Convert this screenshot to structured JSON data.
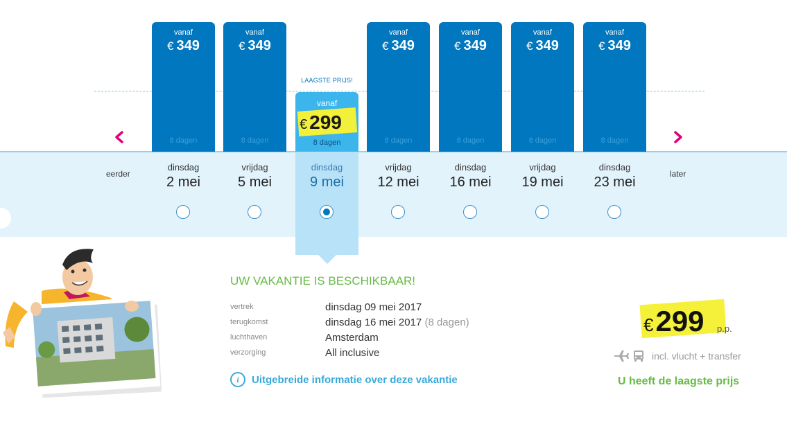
{
  "nav": {
    "earlier_label": "eerder",
    "later_label": "later",
    "prev_arrow_icon": "chevron-left-icon",
    "next_arrow_icon": "chevron-right-icon"
  },
  "lowest_tag": "LAAGSTE PRIJS!",
  "currency": "€",
  "dates": [
    {
      "dow": "dinsdag",
      "date": "2 mei",
      "vanaf": "vanaf",
      "price": "349",
      "days": "8 dagen",
      "selected": false
    },
    {
      "dow": "vrijdag",
      "date": "5 mei",
      "vanaf": "vanaf",
      "price": "349",
      "days": "8 dagen",
      "selected": false
    },
    {
      "dow": "dinsdag",
      "date": "9 mei",
      "vanaf": "vanaf",
      "price": "299",
      "days": "8 dagen",
      "selected": true
    },
    {
      "dow": "vrijdag",
      "date": "12 mei",
      "vanaf": "vanaf",
      "price": "349",
      "days": "8 dagen",
      "selected": false
    },
    {
      "dow": "dinsdag",
      "date": "16 mei",
      "vanaf": "vanaf",
      "price": "349",
      "days": "8 dagen",
      "selected": false
    },
    {
      "dow": "vrijdag",
      "date": "19 mei",
      "vanaf": "vanaf",
      "price": "349",
      "days": "8 dagen",
      "selected": false
    },
    {
      "dow": "dinsdag",
      "date": "23 mei",
      "vanaf": "vanaf",
      "price": "349",
      "days": "8 dagen",
      "selected": false
    }
  ],
  "details": {
    "title": "UW VAKANTIE IS BESCHIKBAAR!",
    "rows": [
      {
        "label": "vertrek",
        "value": "dinsdag 09 mei 2017",
        "extra": ""
      },
      {
        "label": "terugkomst",
        "value": "dinsdag 16 mei 2017",
        "extra": "(8 dagen)"
      },
      {
        "label": "luchthaven",
        "value": "Amsterdam",
        "extra": ""
      },
      {
        "label": "verzorging",
        "value": "All inclusive",
        "extra": ""
      }
    ],
    "info_link": "Uitgebreide informatie over deze vakantie",
    "info_icon": "info-icon"
  },
  "price_box": {
    "currency": "€",
    "price": "299",
    "pp": "p.p.",
    "incl": "incl. vlucht + transfer",
    "plane_icon": "plane-icon",
    "bus_icon": "bus-icon",
    "lowest_msg": "U heeft de laagste prijs"
  },
  "colors": {
    "bar": "#0077be",
    "selected_bar": "#3cb5ec",
    "highlight": "#f3f03a",
    "success": "#66bb44",
    "arrow": "#e2007a",
    "band": "#e2f3fc"
  }
}
